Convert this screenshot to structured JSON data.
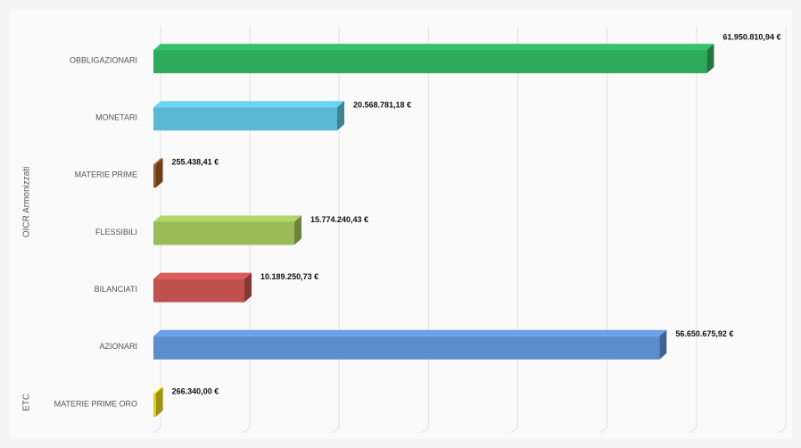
{
  "chart_data": {
    "type": "bar3d",
    "orientation": "horizontal",
    "categories": [
      "OBBLIGAZIONARI",
      "MONETARI",
      "MATERIE PRIME",
      "FLESSIBILI",
      "BILANCIATI",
      "AZIONARI",
      "MATERIE PRIME ORO"
    ],
    "values": [
      61950810.94,
      20568781.18,
      255438.41,
      15774240.43,
      10189250.73,
      56650675.92,
      266340.0
    ],
    "value_labels": [
      "61.950.810,94 €",
      "20.568.781,18 €",
      "255.438,41 €",
      "15.774.240,43 €",
      "10.189.250,73 €",
      "56.650.675,92 €",
      "266.340,00 €"
    ],
    "colors": [
      "#2eaa5c",
      "#5bb8d4",
      "#9c5a2a",
      "#9bbb59",
      "#c0504d",
      "#5b8ccc",
      "#e2cf1c"
    ],
    "groups": [
      {
        "label": "OICR Armonizzati",
        "size": 6
      },
      {
        "label": "ETC",
        "size": 1
      }
    ],
    "xlim": [
      0,
      70000000
    ],
    "xticks": [
      0,
      10000000,
      20000000,
      30000000,
      40000000,
      50000000,
      60000000,
      70000000
    ],
    "grid": true
  }
}
